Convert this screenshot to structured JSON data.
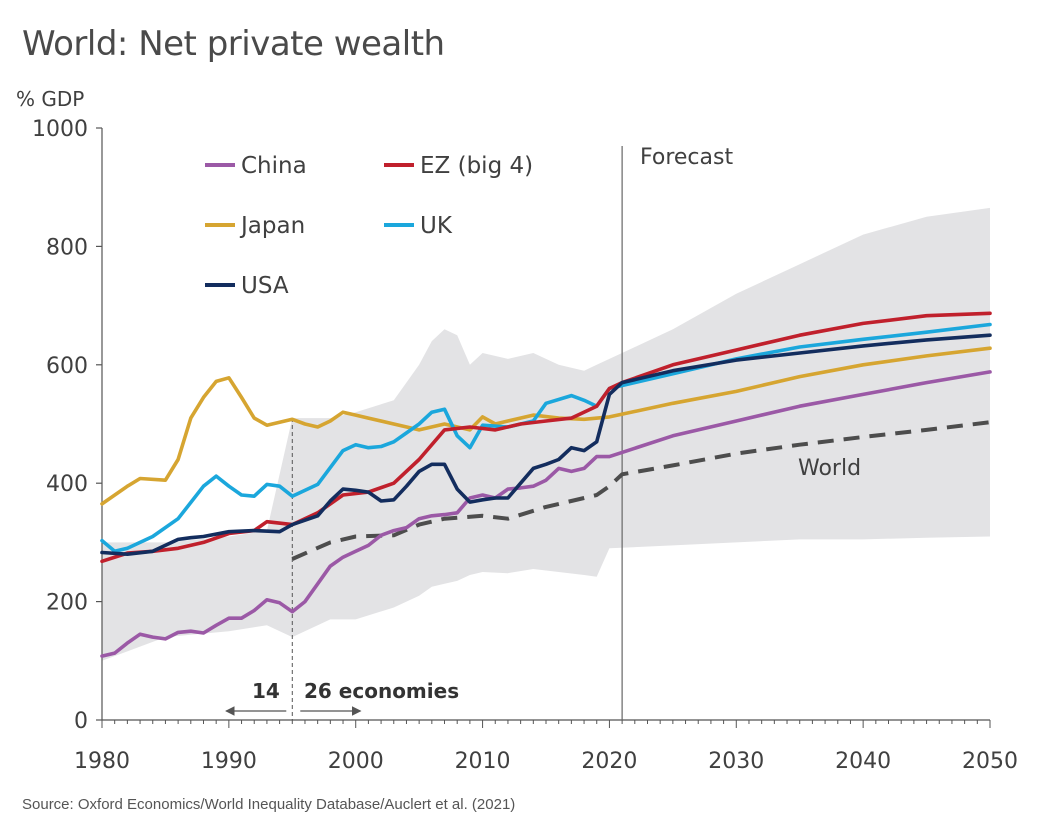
{
  "title": "World: Net private wealth",
  "source": "Source: Oxford Economics/World Inequality Database/Auclert et al. (2021)",
  "chart_data": {
    "type": "line",
    "ylabel": "% GDP",
    "xlim": [
      1980,
      2050
    ],
    "ylim": [
      0,
      1000
    ],
    "xticks": [
      "1980",
      "1990",
      "2000",
      "2010",
      "2020",
      "2030",
      "2040",
      "2050"
    ],
    "yticks": [
      "0",
      "200",
      "400",
      "600",
      "800",
      "1000"
    ],
    "forecast_label": "Forecast",
    "forecast_start": 2021,
    "split_year": 1995,
    "split_left_label": "14",
    "split_right_label": "26 economies",
    "band": {
      "x": [
        1980,
        1985,
        1990,
        1993,
        1995,
        1998,
        2000,
        2003,
        2005,
        2006,
        2007,
        2008,
        2009,
        2010,
        2012,
        2014,
        2016,
        2018,
        2019,
        2020,
        2025,
        2030,
        2035,
        2040,
        2045,
        2050
      ],
      "upper": [
        300,
        300,
        310,
        320,
        510,
        510,
        520,
        540,
        600,
        640,
        660,
        650,
        600,
        620,
        610,
        620,
        600,
        590,
        600,
        610,
        660,
        720,
        770,
        820,
        850,
        865
      ],
      "lower": [
        100,
        140,
        150,
        160,
        140,
        170,
        170,
        190,
        210,
        225,
        230,
        235,
        245,
        250,
        248,
        255,
        250,
        245,
        242,
        290,
        295,
        300,
        305,
        305,
        308,
        310
      ]
    },
    "world_label": "World",
    "series": [
      {
        "name": "China",
        "color": "#9b59a6",
        "dashed": false,
        "x": [
          1980,
          1981,
          1982,
          1983,
          1984,
          1985,
          1986,
          1987,
          1988,
          1989,
          1990,
          1991,
          1992,
          1993,
          1994,
          1995,
          1996,
          1997,
          1998,
          1999,
          2000,
          2001,
          2002,
          2003,
          2004,
          2005,
          2006,
          2007,
          2008,
          2009,
          2010,
          2011,
          2012,
          2013,
          2014,
          2015,
          2016,
          2017,
          2018,
          2019,
          2020,
          2021,
          2025,
          2030,
          2035,
          2040,
          2045,
          2050
        ],
        "y": [
          108,
          113,
          130,
          145,
          140,
          137,
          148,
          150,
          147,
          160,
          172,
          172,
          185,
          203,
          198,
          183,
          200,
          230,
          260,
          275,
          285,
          295,
          312,
          320,
          325,
          340,
          345,
          347,
          350,
          375,
          380,
          375,
          390,
          392,
          395,
          405,
          425,
          420,
          425,
          445,
          445,
          452,
          480,
          505,
          530,
          550,
          570,
          588
        ]
      },
      {
        "name": "EZ (big 4)",
        "color": "#c0202c",
        "dashed": false,
        "x": [
          1980,
          1982,
          1984,
          1986,
          1988,
          1990,
          1992,
          1993,
          1995,
          1997,
          1999,
          2001,
          2003,
          2005,
          2007,
          2009,
          2011,
          2013,
          2015,
          2017,
          2019,
          2020,
          2021,
          2025,
          2030,
          2035,
          2040,
          2045,
          2050
        ],
        "y": [
          268,
          282,
          285,
          290,
          300,
          315,
          320,
          335,
          330,
          350,
          380,
          385,
          400,
          440,
          490,
          495,
          490,
          500,
          505,
          510,
          530,
          560,
          570,
          600,
          625,
          650,
          670,
          683,
          687
        ]
      },
      {
        "name": "Japan",
        "color": "#d6a531",
        "dashed": false,
        "x": [
          1980,
          1982,
          1983,
          1985,
          1986,
          1987,
          1988,
          1989,
          1990,
          1991,
          1992,
          1993,
          1995,
          1996,
          1997,
          1998,
          1999,
          2000,
          2001,
          2003,
          2005,
          2007,
          2009,
          2010,
          2011,
          2012,
          2014,
          2016,
          2018,
          2020,
          2025,
          2030,
          2035,
          2040,
          2045,
          2050
        ],
        "y": [
          365,
          395,
          408,
          405,
          440,
          510,
          545,
          572,
          578,
          545,
          510,
          498,
          508,
          500,
          495,
          505,
          520,
          515,
          510,
          500,
          490,
          500,
          490,
          512,
          500,
          505,
          515,
          510,
          508,
          512,
          535,
          555,
          580,
          600,
          615,
          628
        ]
      },
      {
        "name": "UK",
        "color": "#1ba7dc",
        "dashed": false,
        "x": [
          1980,
          1981,
          1982,
          1984,
          1986,
          1988,
          1989,
          1990,
          1991,
          1992,
          1993,
          1994,
          1995,
          1997,
          1999,
          2000,
          2001,
          2002,
          2003,
          2004,
          2005,
          2006,
          2007,
          2008,
          2009,
          2010,
          2012,
          2013,
          2014,
          2015,
          2017,
          2018,
          2019,
          2020,
          2025,
          2030,
          2035,
          2040,
          2045,
          2050
        ],
        "y": [
          303,
          285,
          290,
          310,
          340,
          395,
          412,
          395,
          380,
          378,
          398,
          395,
          378,
          398,
          455,
          465,
          460,
          462,
          470,
          485,
          500,
          520,
          525,
          480,
          460,
          498,
          495,
          500,
          505,
          535,
          548,
          540,
          530,
          560,
          585,
          610,
          630,
          643,
          655,
          668
        ]
      },
      {
        "name": "USA",
        "color": "#132d5e",
        "dashed": false,
        "x": [
          1980,
          1982,
          1984,
          1986,
          1987,
          1988,
          1990,
          1992,
          1994,
          1995,
          1997,
          1998,
          1999,
          2000,
          2001,
          2002,
          2003,
          2004,
          2005,
          2006,
          2007,
          2008,
          2009,
          2010,
          2011,
          2012,
          2013,
          2014,
          2015,
          2016,
          2017,
          2018,
          2019,
          2020,
          2021,
          2025,
          2030,
          2035,
          2040,
          2045,
          2050
        ],
        "y": [
          283,
          280,
          285,
          305,
          308,
          310,
          318,
          320,
          318,
          330,
          345,
          370,
          390,
          388,
          385,
          370,
          372,
          395,
          420,
          432,
          432,
          390,
          368,
          372,
          375,
          375,
          400,
          425,
          432,
          440,
          460,
          455,
          470,
          550,
          570,
          590,
          608,
          620,
          632,
          642,
          650
        ]
      },
      {
        "name": "World",
        "color": "#4d4d4d",
        "dashed": true,
        "x": [
          1995,
          1998,
          2000,
          2003,
          2005,
          2007,
          2010,
          2012,
          2015,
          2018,
          2019,
          2020,
          2021,
          2025,
          2030,
          2035,
          2040,
          2045,
          2050
        ],
        "y": [
          272,
          300,
          310,
          312,
          330,
          340,
          345,
          340,
          360,
          375,
          380,
          395,
          415,
          430,
          450,
          465,
          478,
          490,
          503
        ]
      }
    ],
    "legend": [
      "China",
      "EZ (big 4)",
      "Japan",
      "UK",
      "USA"
    ],
    "legend_placement": "top-left"
  }
}
